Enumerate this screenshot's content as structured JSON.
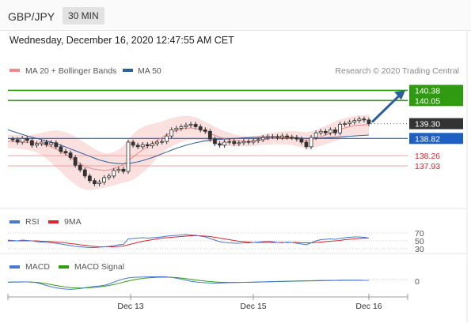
{
  "header": {
    "pair": "GBP/JPY",
    "timeframe": "30 MIN"
  },
  "datetime": "Wednesday, December 16, 2020 12:47:55 AM CET",
  "credit": "Research © 2020 Trading Central",
  "colors": {
    "bollinger": "#f08a8a",
    "band_fill": "#fbe0e0",
    "ma50": "#2e5d9b",
    "green": "#2f9a12",
    "red": "#d9262e",
    "blue_label": "#1f5fbf",
    "dark": "#333333",
    "arrow": "#2c5e9a"
  },
  "chart_data": [
    {
      "type": "line",
      "name": "price",
      "legend": [
        {
          "label": "MA 20 + Bollinger Bands",
          "color": "#f08a8a"
        },
        {
          "label": "MA 50",
          "color": "#2e5d9b"
        }
      ],
      "x_ticks": [
        "Dec 13",
        "Dec 15",
        "Dec 16"
      ],
      "ylim": [
        136.7,
        140.75
      ],
      "levels": [
        {
          "value": 140.38,
          "label": "140.38",
          "kind": "resistance"
        },
        {
          "value": 140.05,
          "label": "140.05",
          "kind": "resistance"
        },
        {
          "value": 139.3,
          "label": "139.30",
          "kind": "last"
        },
        {
          "value": 138.82,
          "label": "138.82",
          "kind": "pivot"
        },
        {
          "value": 138.26,
          "label": "138.26",
          "kind": "support"
        },
        {
          "value": 137.93,
          "label": "137.93",
          "kind": "support"
        }
      ],
      "price": [
        138.8,
        138.78,
        138.7,
        138.82,
        138.75,
        138.6,
        138.65,
        138.7,
        138.62,
        138.68,
        138.55,
        138.4,
        138.35,
        138.2,
        137.95,
        137.8,
        137.6,
        137.45,
        137.35,
        137.4,
        137.55,
        137.6,
        137.78,
        137.82,
        137.75,
        138.7,
        138.6,
        138.55,
        138.62,
        138.58,
        138.65,
        138.7,
        138.72,
        138.9,
        139.1,
        139.15,
        139.2,
        139.25,
        139.28,
        139.2,
        139.1,
        139.05,
        138.8,
        138.65,
        138.6,
        138.7,
        138.72,
        138.65,
        138.68,
        138.72,
        138.7,
        138.75,
        138.78,
        138.85,
        138.88,
        138.88,
        138.85,
        138.9,
        138.86,
        138.85,
        138.8,
        138.7,
        138.55,
        138.85,
        139.0,
        139.05,
        139.0,
        139.1,
        139.0,
        139.28,
        139.3,
        139.35,
        139.4,
        139.45,
        139.42,
        139.3
      ],
      "ma20": [
        138.72,
        138.72,
        138.71,
        138.7,
        138.69,
        138.68,
        138.67,
        138.64,
        138.6,
        138.55,
        138.48,
        138.4,
        138.3,
        138.2,
        138.1,
        138.0,
        137.92,
        137.86,
        137.82,
        137.8,
        137.78,
        137.8,
        137.84,
        137.9,
        137.98,
        138.1,
        138.22,
        138.34,
        138.45,
        138.55,
        138.65,
        138.75,
        138.85,
        138.95,
        139.02,
        139.08,
        139.12,
        139.15,
        139.16,
        139.14,
        139.1,
        139.04,
        138.98,
        138.92,
        138.86,
        138.82,
        138.79,
        138.76,
        138.74,
        138.73,
        138.72,
        138.73,
        138.75,
        138.78,
        138.8,
        138.82,
        138.83,
        138.84,
        138.84,
        138.83,
        138.81,
        138.78,
        138.76,
        138.78,
        138.82,
        138.87,
        138.93,
        138.99,
        139.05,
        139.11,
        139.16,
        139.2,
        139.23,
        139.25,
        139.26,
        139.27
      ],
      "band_width": [
        0.22,
        0.22,
        0.22,
        0.23,
        0.24,
        0.26,
        0.3,
        0.36,
        0.44,
        0.52,
        0.6,
        0.66,
        0.72,
        0.76,
        0.78,
        0.78,
        0.76,
        0.72,
        0.66,
        0.6,
        0.56,
        0.54,
        0.54,
        0.56,
        0.6,
        0.68,
        0.74,
        0.76,
        0.74,
        0.7,
        0.64,
        0.58,
        0.52,
        0.48,
        0.46,
        0.44,
        0.42,
        0.4,
        0.38,
        0.36,
        0.34,
        0.32,
        0.3,
        0.28,
        0.26,
        0.24,
        0.22,
        0.2,
        0.18,
        0.17,
        0.16,
        0.16,
        0.16,
        0.17,
        0.18,
        0.19,
        0.2,
        0.21,
        0.22,
        0.23,
        0.24,
        0.25,
        0.26,
        0.27,
        0.28,
        0.29,
        0.3,
        0.31,
        0.32,
        0.32,
        0.32,
        0.32,
        0.32,
        0.32,
        0.32,
        0.32
      ],
      "ma50": [
        139.1,
        139.05,
        139.0,
        138.95,
        138.9,
        138.86,
        138.82,
        138.78,
        138.74,
        138.7,
        138.65,
        138.6,
        138.54,
        138.48,
        138.42,
        138.36,
        138.3,
        138.24,
        138.18,
        138.12,
        138.08,
        138.04,
        138.02,
        138.0,
        138.0,
        138.01,
        138.03,
        138.06,
        138.1,
        138.15,
        138.2,
        138.26,
        138.32,
        138.38,
        138.44,
        138.5,
        138.55,
        138.6,
        138.64,
        138.68,
        138.71,
        138.74,
        138.76,
        138.78,
        138.79,
        138.8,
        138.81,
        138.82,
        138.83,
        138.84,
        138.85,
        138.86,
        138.86,
        138.87,
        138.87,
        138.87,
        138.87,
        138.87,
        138.86,
        138.85,
        138.84,
        138.83,
        138.82,
        138.82,
        138.82,
        138.83,
        138.84,
        138.85,
        138.86,
        138.87,
        138.88,
        138.89,
        138.9,
        138.91,
        138.92,
        138.93
      ]
    },
    {
      "type": "line",
      "name": "rsi",
      "legend": [
        {
          "label": "RSI",
          "color": "#4a78d0"
        },
        {
          "label": "9MA",
          "color": "#d9262e"
        }
      ],
      "ylim": [
        20,
        80
      ],
      "levels": [
        70,
        50,
        30
      ],
      "level_labels": [
        "70",
        "50",
        "30"
      ],
      "rsi": [
        52,
        51,
        50,
        52,
        51,
        50,
        48,
        47,
        46,
        45,
        44,
        42,
        40,
        38,
        36,
        35,
        34,
        33,
        33,
        34,
        35,
        36,
        38,
        40,
        41,
        55,
        56,
        57,
        58,
        57,
        58,
        59,
        60,
        62,
        63,
        64,
        65,
        66,
        65,
        64,
        62,
        60,
        56,
        52,
        48,
        46,
        45,
        44,
        44,
        45,
        45,
        46,
        47,
        48,
        49,
        48,
        46,
        45,
        47,
        46,
        44,
        42,
        40,
        45,
        50,
        53,
        54,
        55,
        54,
        56,
        58,
        59,
        60,
        60,
        59,
        57
      ],
      "ma9": [
        50,
        50,
        50,
        50,
        50,
        50,
        50,
        49,
        49,
        48,
        47,
        46,
        45,
        43,
        42,
        40,
        39,
        37,
        36,
        35,
        35,
        35,
        35,
        36,
        37,
        40,
        43,
        46,
        49,
        51,
        53,
        55,
        57,
        58,
        59,
        60,
        61,
        62,
        63,
        63,
        63,
        62,
        61,
        59,
        57,
        55,
        53,
        51,
        49,
        48,
        47,
        46,
        46,
        46,
        46,
        46,
        46,
        46,
        46,
        46,
        46,
        45,
        45,
        45,
        46,
        47,
        48,
        49,
        50,
        51,
        53,
        54,
        55,
        56,
        57,
        57
      ]
    },
    {
      "type": "line",
      "name": "macd",
      "legend": [
        {
          "label": "MACD",
          "color": "#4a78d0"
        },
        {
          "label": "MACD Signal",
          "color": "#2f9a12"
        }
      ],
      "ylim": [
        -1,
        1
      ],
      "zero_label": "0",
      "macd": [
        0.05,
        0.06,
        0.06,
        0.07,
        0.06,
        0.05,
        0.0,
        -0.1,
        -0.22,
        -0.32,
        -0.4,
        -0.46,
        -0.5,
        -0.52,
        -0.5,
        -0.46,
        -0.4,
        -0.34,
        -0.3,
        -0.26,
        -0.2,
        -0.1,
        0.05,
        0.18,
        0.3,
        0.38,
        0.42,
        0.44,
        0.45,
        0.46,
        0.47,
        0.48,
        0.48,
        0.46,
        0.42,
        0.36,
        0.28,
        0.2,
        0.12,
        0.06,
        0.02,
        0.0,
        -0.02,
        -0.03,
        -0.02,
        -0.01,
        0.0,
        0.01,
        0.02,
        0.03,
        0.04,
        0.05,
        0.06,
        0.07,
        0.08,
        0.09,
        0.1,
        0.11,
        0.12,
        0.13,
        0.14,
        0.15,
        0.15,
        0.16,
        0.17,
        0.18,
        0.18,
        0.19,
        0.19,
        0.2,
        0.2,
        0.2,
        0.2,
        0.2,
        0.19,
        0.19
      ],
      "signal": [
        0.04,
        0.05,
        0.05,
        0.06,
        0.06,
        0.05,
        0.03,
        -0.02,
        -0.08,
        -0.15,
        -0.22,
        -0.28,
        -0.34,
        -0.38,
        -0.41,
        -0.42,
        -0.41,
        -0.39,
        -0.36,
        -0.33,
        -0.28,
        -0.22,
        -0.14,
        -0.05,
        0.05,
        0.14,
        0.22,
        0.29,
        0.34,
        0.38,
        0.41,
        0.43,
        0.44,
        0.44,
        0.43,
        0.41,
        0.37,
        0.32,
        0.27,
        0.22,
        0.17,
        0.13,
        0.09,
        0.06,
        0.04,
        0.03,
        0.02,
        0.02,
        0.02,
        0.03,
        0.03,
        0.04,
        0.05,
        0.06,
        0.07,
        0.08,
        0.09,
        0.1,
        0.11,
        0.12,
        0.13,
        0.13,
        0.14,
        0.15,
        0.15,
        0.16,
        0.17,
        0.17,
        0.18,
        0.18,
        0.19,
        0.19,
        0.19,
        0.19,
        0.19,
        0.19
      ]
    }
  ]
}
